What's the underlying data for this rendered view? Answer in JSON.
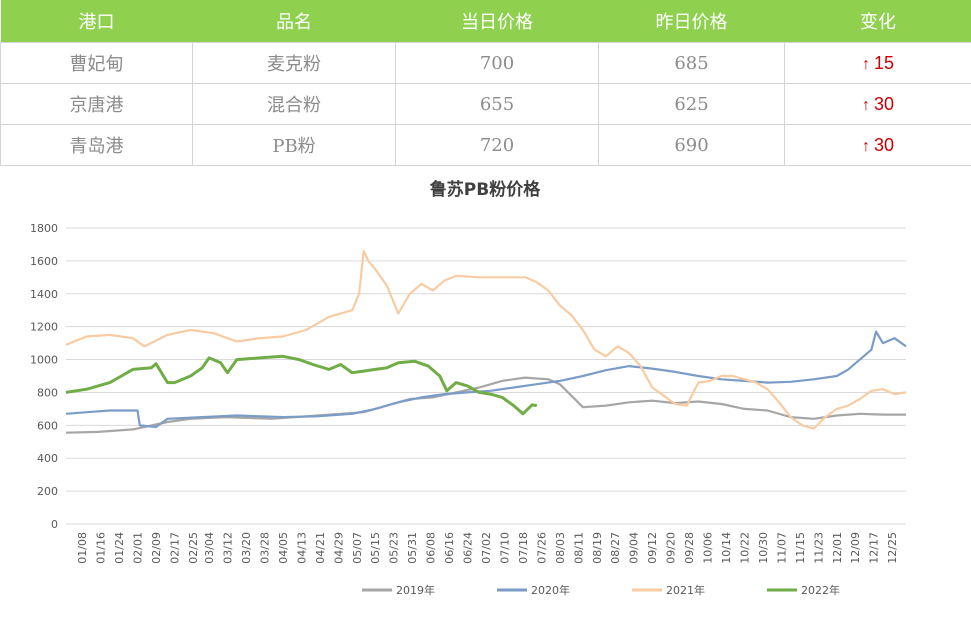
{
  "table": {
    "headers": [
      "港口",
      "品名",
      "当日价格",
      "昨日价格",
      "变化"
    ],
    "rows": [
      {
        "port": "曹妃甸",
        "product": "麦克粉",
        "today": "700",
        "yesterday": "685",
        "arrow": "↑",
        "change": "15"
      },
      {
        "port": "京唐港",
        "product": "混合粉",
        "today": "655",
        "yesterday": "625",
        "arrow": "↑",
        "change": "30"
      },
      {
        "port": "青岛港",
        "product": "PB粉",
        "today": "720",
        "yesterday": "690",
        "arrow": "↑",
        "change": "30"
      }
    ],
    "header_bg": "#8fd14f",
    "change_color": "#cc0000"
  },
  "chart_data": {
    "type": "line",
    "title": "鲁苏PB粉价格",
    "xlabel": "",
    "ylabel": "",
    "ylim": [
      0,
      1800
    ],
    "yticks": [
      0,
      200,
      400,
      600,
      800,
      1000,
      1200,
      1400,
      1600,
      1800
    ],
    "xlim": [
      1,
      365
    ],
    "x_tick_labels": [
      {
        "label": "01/08",
        "day": 8
      },
      {
        "label": "01/16",
        "day": 16
      },
      {
        "label": "01/24",
        "day": 24
      },
      {
        "label": "02/01",
        "day": 32
      },
      {
        "label": "02/09",
        "day": 40
      },
      {
        "label": "02/17",
        "day": 48
      },
      {
        "label": "02/25",
        "day": 56
      },
      {
        "label": "03/04",
        "day": 63
      },
      {
        "label": "03/12",
        "day": 71
      },
      {
        "label": "03/20",
        "day": 79
      },
      {
        "label": "03/28",
        "day": 87
      },
      {
        "label": "04/05",
        "day": 95
      },
      {
        "label": "04/13",
        "day": 103
      },
      {
        "label": "04/21",
        "day": 111
      },
      {
        "label": "04/29",
        "day": 119
      },
      {
        "label": "05/07",
        "day": 127
      },
      {
        "label": "05/15",
        "day": 135
      },
      {
        "label": "05/23",
        "day": 143
      },
      {
        "label": "05/31",
        "day": 151
      },
      {
        "label": "06/08",
        "day": 159
      },
      {
        "label": "06/16",
        "day": 167
      },
      {
        "label": "06/24",
        "day": 175
      },
      {
        "label": "07/02",
        "day": 183
      },
      {
        "label": "07/10",
        "day": 191
      },
      {
        "label": "07/18",
        "day": 199
      },
      {
        "label": "07/26",
        "day": 207
      },
      {
        "label": "08/03",
        "day": 215
      },
      {
        "label": "08/11",
        "day": 223
      },
      {
        "label": "08/19",
        "day": 231
      },
      {
        "label": "08/27",
        "day": 239
      },
      {
        "label": "09/04",
        "day": 247
      },
      {
        "label": "09/12",
        "day": 255
      },
      {
        "label": "09/20",
        "day": 263
      },
      {
        "label": "09/28",
        "day": 271
      },
      {
        "label": "10/06",
        "day": 279
      },
      {
        "label": "10/14",
        "day": 287
      },
      {
        "label": "10/22",
        "day": 295
      },
      {
        "label": "10/30",
        "day": 303
      },
      {
        "label": "11/07",
        "day": 311
      },
      {
        "label": "11/15",
        "day": 319
      },
      {
        "label": "11/23",
        "day": 327
      },
      {
        "label": "12/01",
        "day": 335
      },
      {
        "label": "12/09",
        "day": 343
      },
      {
        "label": "12/17",
        "day": 351
      },
      {
        "label": "12/25",
        "day": 359
      }
    ],
    "grid": true,
    "legend_position": "bottom",
    "series": [
      {
        "name": "2019年",
        "color": "#a6a6a6",
        "points": [
          [
            1,
            555
          ],
          [
            15,
            560
          ],
          [
            30,
            575
          ],
          [
            35,
            590
          ],
          [
            45,
            620
          ],
          [
            55,
            640
          ],
          [
            70,
            650
          ],
          [
            90,
            640
          ],
          [
            110,
            660
          ],
          [
            130,
            680
          ],
          [
            140,
            720
          ],
          [
            150,
            760
          ],
          [
            160,
            770
          ],
          [
            170,
            800
          ],
          [
            180,
            830
          ],
          [
            190,
            870
          ],
          [
            200,
            890
          ],
          [
            210,
            880
          ],
          [
            215,
            850
          ],
          [
            220,
            780
          ],
          [
            225,
            710
          ],
          [
            235,
            720
          ],
          [
            245,
            740
          ],
          [
            255,
            750
          ],
          [
            265,
            735
          ],
          [
            275,
            745
          ],
          [
            285,
            730
          ],
          [
            295,
            700
          ],
          [
            305,
            690
          ],
          [
            315,
            650
          ],
          [
            325,
            640
          ],
          [
            335,
            660
          ],
          [
            345,
            670
          ],
          [
            355,
            665
          ],
          [
            365,
            665
          ]
        ]
      },
      {
        "name": "2020年",
        "color": "#7a9cc6",
        "points": [
          [
            1,
            670
          ],
          [
            10,
            680
          ],
          [
            20,
            690
          ],
          [
            32,
            690
          ],
          [
            33,
            600
          ],
          [
            40,
            590
          ],
          [
            45,
            640
          ],
          [
            60,
            650
          ],
          [
            75,
            660
          ],
          [
            95,
            650
          ],
          [
            110,
            655
          ],
          [
            125,
            670
          ],
          [
            135,
            700
          ],
          [
            145,
            740
          ],
          [
            155,
            770
          ],
          [
            165,
            790
          ],
          [
            175,
            800
          ],
          [
            185,
            810
          ],
          [
            195,
            830
          ],
          [
            205,
            850
          ],
          [
            215,
            870
          ],
          [
            225,
            900
          ],
          [
            235,
            935
          ],
          [
            245,
            960
          ],
          [
            255,
            945
          ],
          [
            265,
            925
          ],
          [
            275,
            900
          ],
          [
            285,
            880
          ],
          [
            295,
            870
          ],
          [
            305,
            860
          ],
          [
            315,
            865
          ],
          [
            325,
            880
          ],
          [
            335,
            900
          ],
          [
            340,
            940
          ],
          [
            345,
            1000
          ],
          [
            350,
            1060
          ],
          [
            352,
            1170
          ],
          [
            355,
            1100
          ],
          [
            360,
            1130
          ],
          [
            365,
            1080
          ]
        ]
      },
      {
        "name": "2021年",
        "color": "#f8cba2",
        "points": [
          [
            1,
            1090
          ],
          [
            10,
            1140
          ],
          [
            20,
            1150
          ],
          [
            30,
            1130
          ],
          [
            35,
            1080
          ],
          [
            45,
            1150
          ],
          [
            55,
            1180
          ],
          [
            65,
            1160
          ],
          [
            75,
            1110
          ],
          [
            85,
            1130
          ],
          [
            95,
            1140
          ],
          [
            105,
            1180
          ],
          [
            115,
            1260
          ],
          [
            125,
            1300
          ],
          [
            128,
            1400
          ],
          [
            130,
            1660
          ],
          [
            132,
            1600
          ],
          [
            135,
            1550
          ],
          [
            140,
            1450
          ],
          [
            145,
            1280
          ],
          [
            150,
            1400
          ],
          [
            155,
            1460
          ],
          [
            160,
            1420
          ],
          [
            165,
            1480
          ],
          [
            170,
            1510
          ],
          [
            180,
            1500
          ],
          [
            190,
            1500
          ],
          [
            200,
            1500
          ],
          [
            205,
            1470
          ],
          [
            210,
            1420
          ],
          [
            215,
            1330
          ],
          [
            220,
            1270
          ],
          [
            225,
            1180
          ],
          [
            230,
            1060
          ],
          [
            235,
            1020
          ],
          [
            240,
            1080
          ],
          [
            245,
            1040
          ],
          [
            250,
            960
          ],
          [
            255,
            830
          ],
          [
            260,
            780
          ],
          [
            265,
            730
          ],
          [
            270,
            720
          ],
          [
            275,
            860
          ],
          [
            280,
            870
          ],
          [
            285,
            900
          ],
          [
            290,
            900
          ],
          [
            295,
            880
          ],
          [
            300,
            860
          ],
          [
            305,
            820
          ],
          [
            310,
            740
          ],
          [
            315,
            650
          ],
          [
            320,
            600
          ],
          [
            325,
            580
          ],
          [
            330,
            650
          ],
          [
            335,
            700
          ],
          [
            340,
            720
          ],
          [
            345,
            760
          ],
          [
            350,
            810
          ],
          [
            355,
            820
          ],
          [
            360,
            790
          ],
          [
            365,
            800
          ]
        ]
      },
      {
        "name": "2022年",
        "color": "#70ad47",
        "points": [
          [
            1,
            800
          ],
          [
            10,
            820
          ],
          [
            20,
            860
          ],
          [
            25,
            900
          ],
          [
            30,
            940
          ],
          [
            38,
            950
          ],
          [
            40,
            975
          ],
          [
            45,
            860
          ],
          [
            48,
            860
          ],
          [
            55,
            900
          ],
          [
            60,
            950
          ],
          [
            63,
            1010
          ],
          [
            68,
            980
          ],
          [
            71,
            920
          ],
          [
            75,
            1000
          ],
          [
            85,
            1010
          ],
          [
            95,
            1020
          ],
          [
            102,
            1000
          ],
          [
            108,
            970
          ],
          [
            115,
            940
          ],
          [
            120,
            970
          ],
          [
            125,
            920
          ],
          [
            130,
            930
          ],
          [
            135,
            940
          ],
          [
            140,
            950
          ],
          [
            145,
            980
          ],
          [
            152,
            990
          ],
          [
            158,
            960
          ],
          [
            163,
            900
          ],
          [
            166,
            810
          ],
          [
            170,
            860
          ],
          [
            175,
            840
          ],
          [
            180,
            800
          ],
          [
            185,
            790
          ],
          [
            190,
            770
          ],
          [
            195,
            720
          ],
          [
            199,
            670
          ],
          [
            203,
            725
          ],
          [
            205,
            720
          ]
        ]
      }
    ]
  }
}
